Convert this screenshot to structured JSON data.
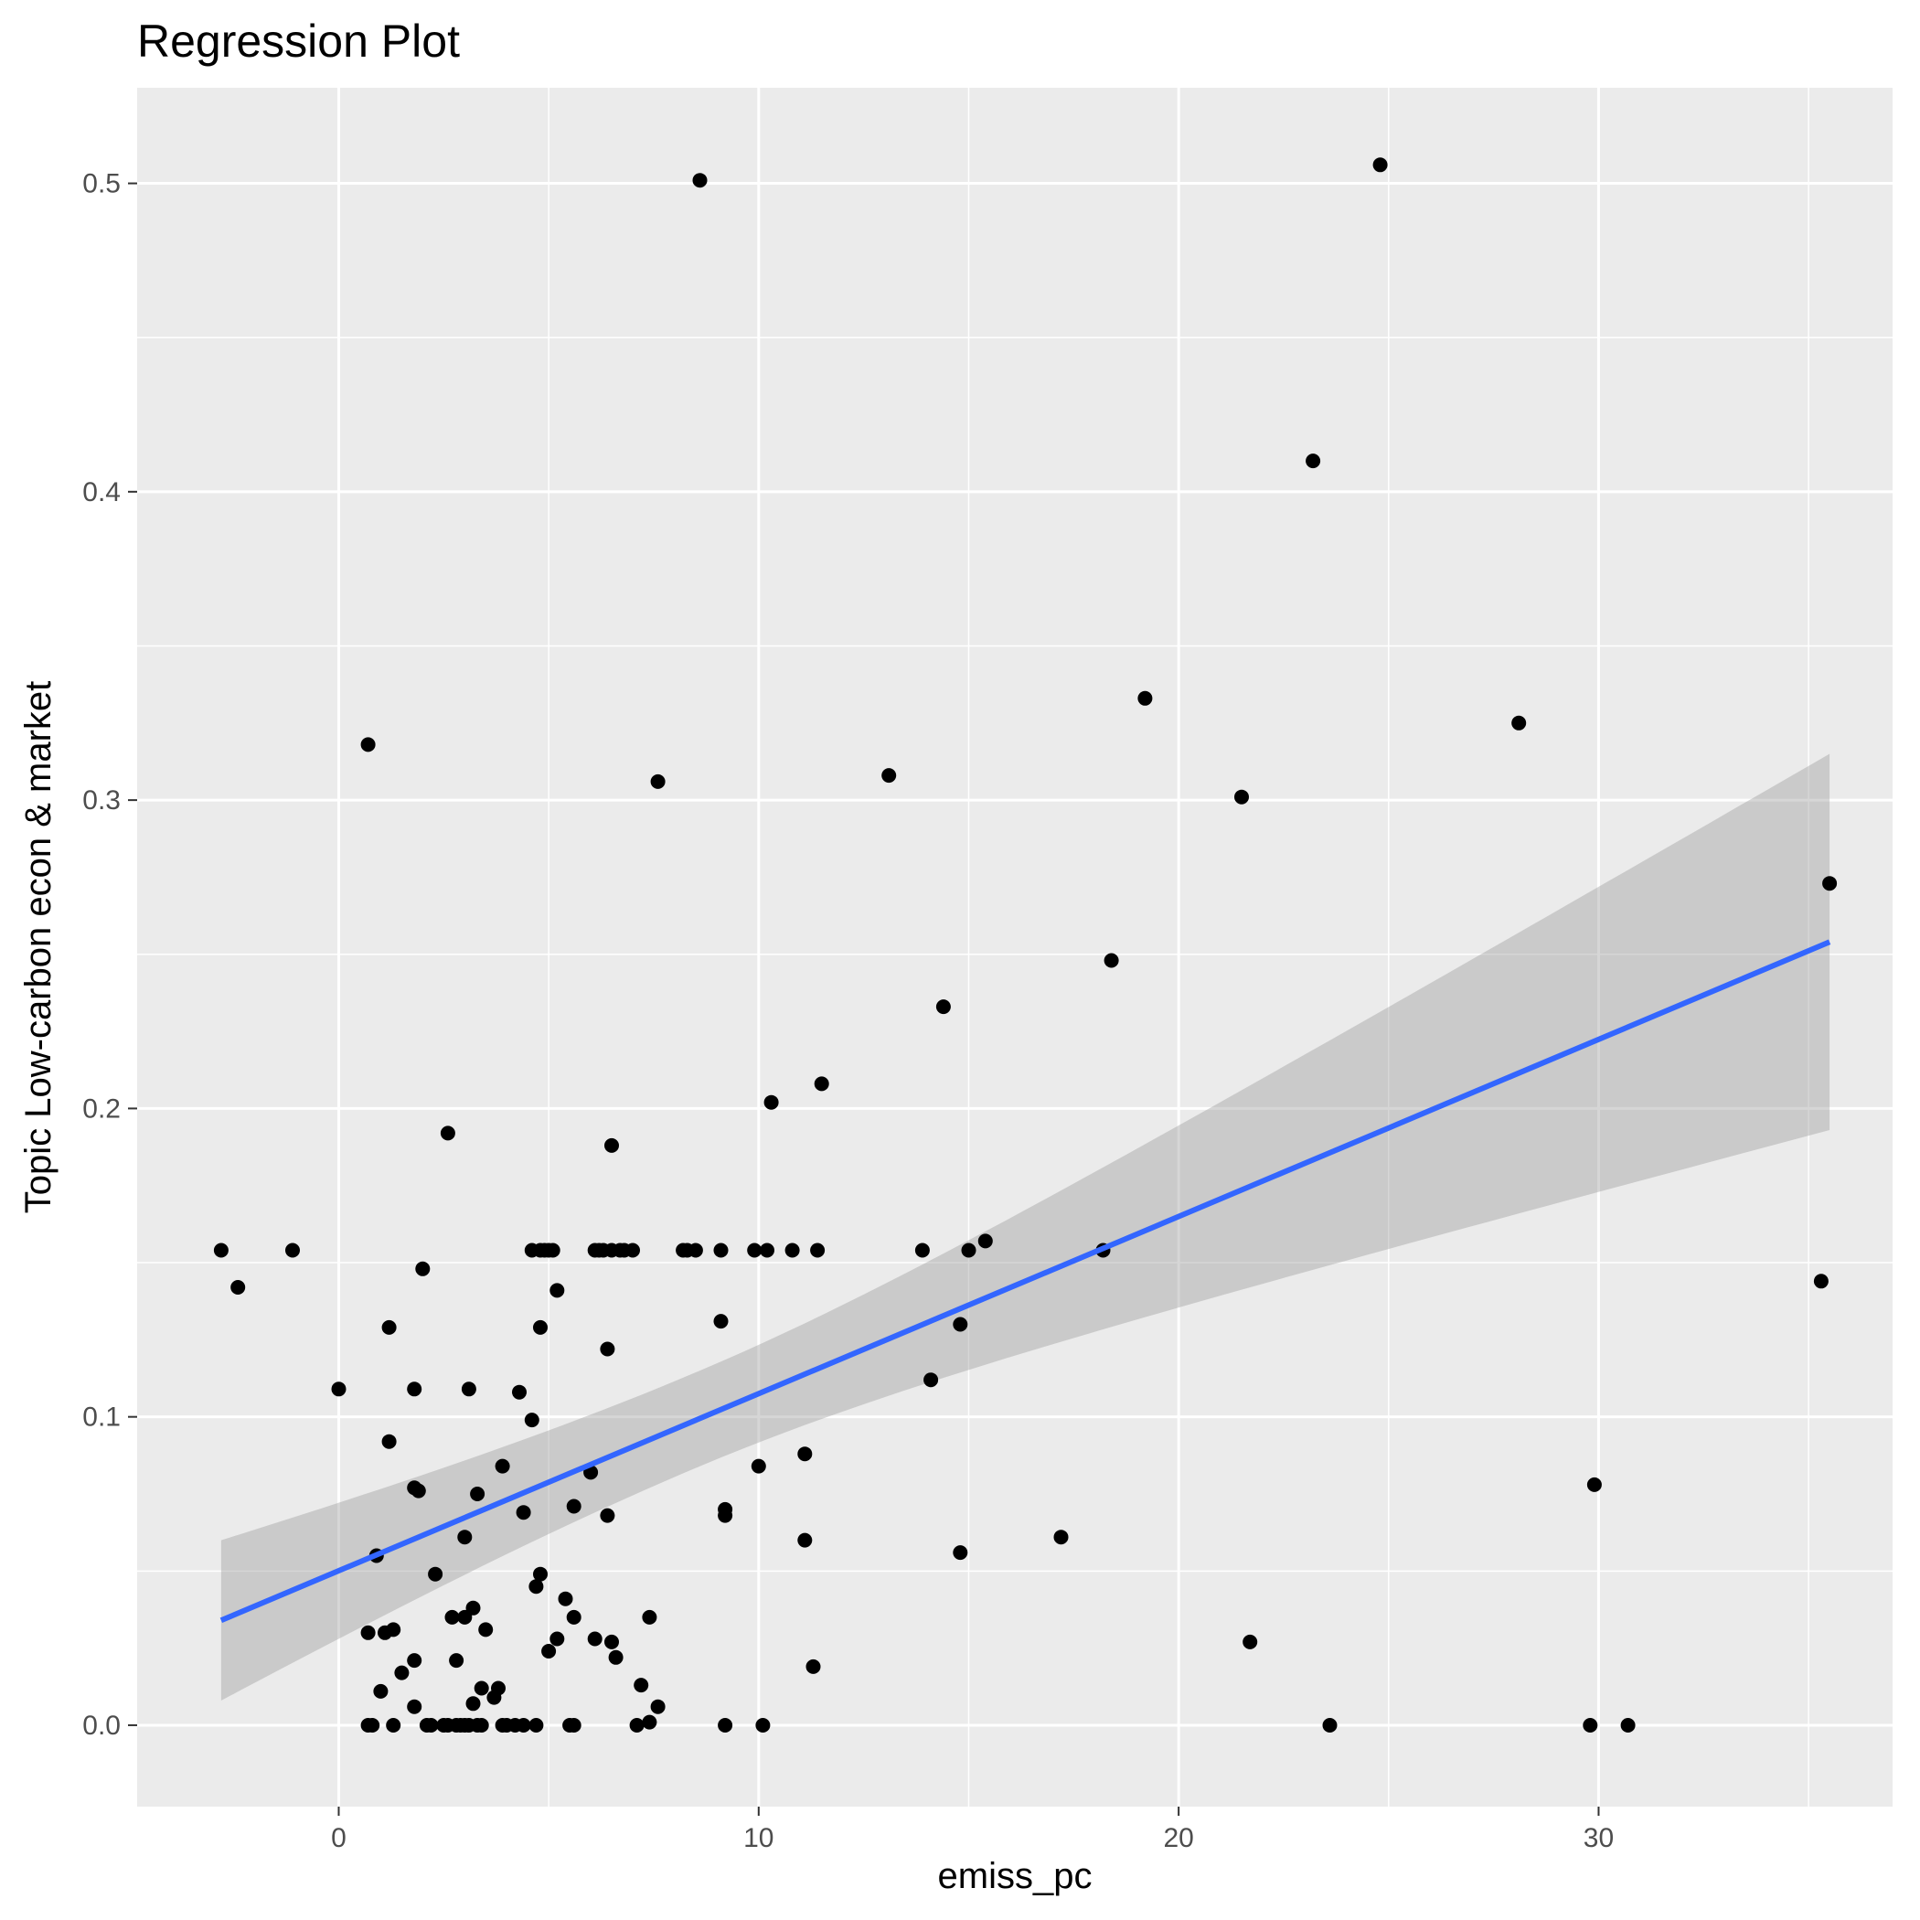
{
  "chart_data": {
    "type": "scatter",
    "title": "Regression Plot",
    "xlabel": "emiss_pc",
    "ylabel": "Topic Low-carbon econ & market",
    "xlim": [
      -4.8,
      37.0
    ],
    "ylim": [
      -0.0264,
      0.531
    ],
    "x_ticks": [
      0,
      10,
      20,
      30
    ],
    "x_tick_labels": [
      "0",
      "10",
      "20",
      "30"
    ],
    "y_ticks": [
      0.0,
      0.1,
      0.2,
      0.3,
      0.4,
      0.5
    ],
    "y_tick_labels": [
      "0.0",
      "0.1",
      "0.2",
      "0.3",
      "0.4",
      "0.5"
    ],
    "grid": true,
    "colors": {
      "panel": "#ebebeb",
      "grid": "#ffffff",
      "points": "#000000",
      "fit_line": "#3366ff",
      "ribbon": "#999999"
    },
    "regression": {
      "x": [
        -2.8,
        35.5
      ],
      "y": [
        0.034,
        0.254
      ],
      "ci_upper": [
        0.06,
        0.315
      ],
      "ci_lower": [
        0.007,
        0.192
      ],
      "ci_center": [
        8.5,
        0.096
      ]
    },
    "points": [
      [
        -2.8,
        0.154
      ],
      [
        -2.4,
        0.142
      ],
      [
        -1.1,
        0.154
      ],
      [
        0.0,
        0.109
      ],
      [
        0.7,
        0.318
      ],
      [
        0.9,
        0.055
      ],
      [
        0.7,
        0.03
      ],
      [
        0.7,
        0.0
      ],
      [
        0.8,
        0.0
      ],
      [
        1.0,
        0.011
      ],
      [
        1.1,
        0.03
      ],
      [
        1.2,
        0.092
      ],
      [
        1.2,
        0.129
      ],
      [
        1.3,
        0.031
      ],
      [
        1.3,
        0.0
      ],
      [
        1.5,
        0.017
      ],
      [
        1.8,
        0.077
      ],
      [
        1.8,
        0.109
      ],
      [
        1.8,
        0.021
      ],
      [
        1.8,
        0.006
      ],
      [
        1.9,
        0.076
      ],
      [
        2.0,
        0.148
      ],
      [
        2.1,
        0.0
      ],
      [
        2.2,
        0.0
      ],
      [
        2.3,
        0.049
      ],
      [
        2.5,
        0.0
      ],
      [
        2.6,
        0.192
      ],
      [
        2.6,
        0.0
      ],
      [
        2.7,
        0.035
      ],
      [
        2.8,
        0.021
      ],
      [
        2.8,
        0.0
      ],
      [
        2.9,
        0.0
      ],
      [
        3.0,
        0.061
      ],
      [
        3.0,
        0.035
      ],
      [
        3.0,
        0.0
      ],
      [
        3.1,
        0.109
      ],
      [
        3.1,
        0.0
      ],
      [
        3.2,
        0.007
      ],
      [
        3.2,
        0.038
      ],
      [
        3.3,
        0.0
      ],
      [
        3.3,
        0.075
      ],
      [
        3.4,
        0.0
      ],
      [
        3.4,
        0.012
      ],
      [
        3.5,
        0.031
      ],
      [
        3.7,
        0.009
      ],
      [
        3.8,
        0.012
      ],
      [
        3.9,
        0.084
      ],
      [
        3.9,
        0.0
      ],
      [
        4.0,
        0.0
      ],
      [
        4.2,
        0.0
      ],
      [
        4.3,
        0.108
      ],
      [
        4.4,
        0.069
      ],
      [
        4.4,
        0.0
      ],
      [
        4.6,
        0.154
      ],
      [
        4.6,
        0.099
      ],
      [
        4.7,
        0.045
      ],
      [
        4.7,
        0.0
      ],
      [
        4.8,
        0.154
      ],
      [
        4.8,
        0.129
      ],
      [
        4.8,
        0.049
      ],
      [
        4.9,
        0.154
      ],
      [
        5.0,
        0.154
      ],
      [
        5.0,
        0.024
      ],
      [
        5.1,
        0.154
      ],
      [
        5.2,
        0.141
      ],
      [
        5.2,
        0.028
      ],
      [
        5.4,
        0.041
      ],
      [
        5.5,
        0.0
      ],
      [
        5.6,
        0.0
      ],
      [
        5.6,
        0.071
      ],
      [
        5.6,
        0.035
      ],
      [
        6.0,
        0.082
      ],
      [
        6.1,
        0.154
      ],
      [
        6.1,
        0.028
      ],
      [
        6.2,
        0.154
      ],
      [
        6.3,
        0.154
      ],
      [
        6.4,
        0.068
      ],
      [
        6.4,
        0.122
      ],
      [
        6.5,
        0.154
      ],
      [
        6.5,
        0.188
      ],
      [
        6.5,
        0.027
      ],
      [
        6.6,
        0.022
      ],
      [
        6.7,
        0.154
      ],
      [
        6.8,
        0.154
      ],
      [
        7.0,
        0.154
      ],
      [
        7.1,
        0.0
      ],
      [
        7.2,
        0.013
      ],
      [
        7.4,
        0.035
      ],
      [
        7.4,
        0.001
      ],
      [
        7.6,
        0.306
      ],
      [
        7.6,
        0.006
      ],
      [
        8.2,
        0.154
      ],
      [
        8.3,
        0.154
      ],
      [
        8.5,
        0.154
      ],
      [
        8.6,
        0.501
      ],
      [
        9.1,
        0.154
      ],
      [
        9.1,
        0.131
      ],
      [
        9.2,
        0.07
      ],
      [
        9.2,
        0.068
      ],
      [
        9.2,
        0.0
      ],
      [
        9.9,
        0.154
      ],
      [
        10.0,
        0.084
      ],
      [
        10.1,
        0.0
      ],
      [
        10.2,
        0.154
      ],
      [
        10.3,
        0.202
      ],
      [
        10.8,
        0.154
      ],
      [
        11.1,
        0.06
      ],
      [
        11.1,
        0.088
      ],
      [
        11.3,
        0.019
      ],
      [
        11.4,
        0.154
      ],
      [
        11.5,
        0.208
      ],
      [
        13.1,
        0.308
      ],
      [
        13.9,
        0.154
      ],
      [
        14.1,
        0.112
      ],
      [
        14.4,
        0.233
      ],
      [
        14.8,
        0.13
      ],
      [
        14.8,
        0.056
      ],
      [
        15.0,
        0.154
      ],
      [
        15.4,
        0.157
      ],
      [
        17.2,
        0.061
      ],
      [
        18.2,
        0.154
      ],
      [
        18.4,
        0.248
      ],
      [
        19.2,
        0.333
      ],
      [
        21.5,
        0.301
      ],
      [
        21.7,
        0.027
      ],
      [
        23.2,
        0.41
      ],
      [
        23.6,
        0.0
      ],
      [
        24.8,
        0.506
      ],
      [
        28.1,
        0.325
      ],
      [
        29.8,
        0.0
      ],
      [
        29.9,
        0.078
      ],
      [
        30.7,
        0.0
      ],
      [
        35.3,
        0.144
      ],
      [
        35.5,
        0.273
      ]
    ]
  }
}
